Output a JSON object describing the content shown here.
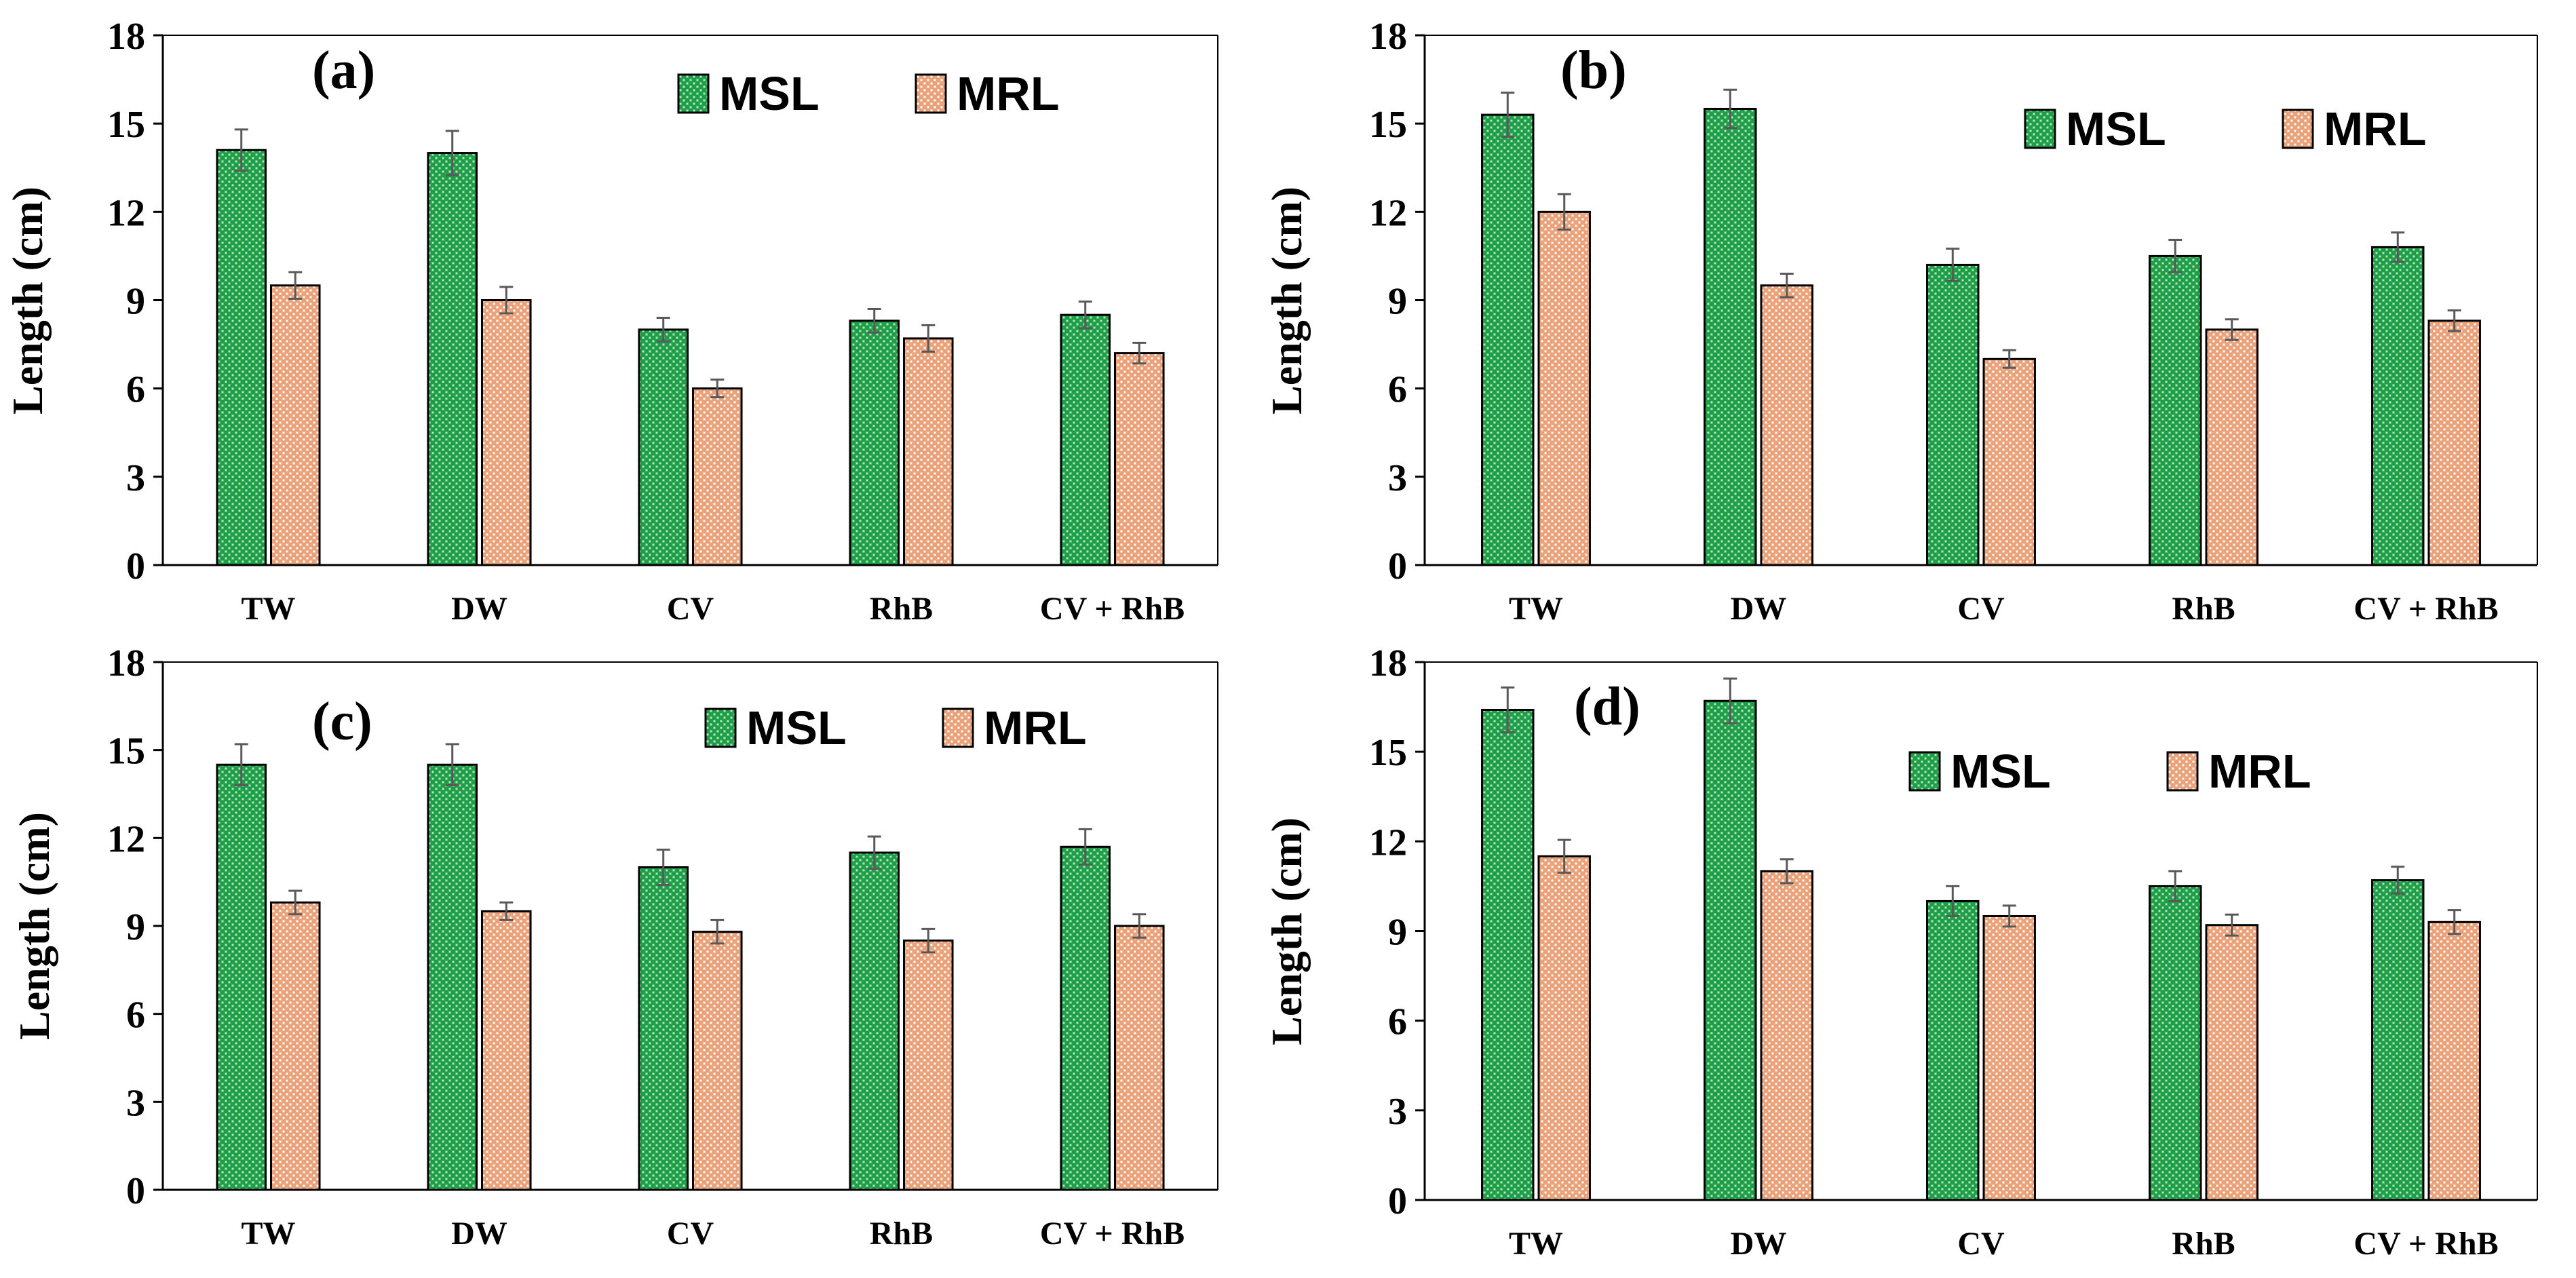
{
  "figure": {
    "colors": {
      "msl_fill": "#1f9e48",
      "msl_dot": "#b8e6c4",
      "mrl_fill": "#e9a27a",
      "mrl_dot": "#ffffff",
      "bar_outline": "#000000",
      "error_bar": "#595959",
      "axis": "#000000"
    }
  },
  "chart_data": [
    {
      "id": "a",
      "type": "bar",
      "panel_label": "(a)",
      "ylabel": "Length (cm)",
      "ylim": [
        0,
        18
      ],
      "yticks": [
        "0",
        "3",
        "6",
        "9",
        "12",
        "15",
        "18"
      ],
      "categories": [
        "TW",
        "DW",
        "CV",
        "RhB",
        "CV + RhB"
      ],
      "legend_position": "top-right",
      "series": [
        {
          "name": "MSL",
          "values": [
            14.1,
            14.0,
            8.0,
            8.3,
            8.5
          ],
          "errors": [
            0.7,
            0.75,
            0.4,
            0.4,
            0.45
          ]
        },
        {
          "name": "MRL",
          "values": [
            9.5,
            9.0,
            6.0,
            7.7,
            7.2
          ],
          "errors": [
            0.45,
            0.45,
            0.3,
            0.45,
            0.35
          ]
        }
      ]
    },
    {
      "id": "b",
      "type": "bar",
      "panel_label": "(b)",
      "ylabel": "Length (cm)",
      "ylim": [
        0,
        18
      ],
      "yticks": [
        "0",
        "3",
        "6",
        "9",
        "12",
        "15",
        "18"
      ],
      "categories": [
        "TW",
        "DW",
        "CV",
        "RhB",
        "CV + RhB"
      ],
      "legend_position": "top-right",
      "series": [
        {
          "name": "MSL",
          "values": [
            15.3,
            15.5,
            10.2,
            10.5,
            10.8
          ],
          "errors": [
            0.75,
            0.65,
            0.55,
            0.55,
            0.5
          ]
        },
        {
          "name": "MRL",
          "values": [
            12.0,
            9.5,
            7.0,
            8.0,
            8.3
          ],
          "errors": [
            0.6,
            0.4,
            0.3,
            0.35,
            0.35
          ]
        }
      ]
    },
    {
      "id": "c",
      "type": "bar",
      "panel_label": "(c)",
      "ylabel": "Length (cm)",
      "ylim": [
        0,
        18
      ],
      "yticks": [
        "0",
        "3",
        "6",
        "9",
        "12",
        "15",
        "18"
      ],
      "categories": [
        "TW",
        "DW",
        "CV",
        "RhB",
        "CV + RhB"
      ],
      "legend_position": "top-right",
      "series": [
        {
          "name": "MSL",
          "values": [
            14.5,
            14.5,
            11.0,
            11.5,
            11.7
          ],
          "errors": [
            0.7,
            0.7,
            0.6,
            0.55,
            0.6
          ]
        },
        {
          "name": "MRL",
          "values": [
            9.8,
            9.5,
            8.8,
            8.5,
            9.0
          ],
          "errors": [
            0.4,
            0.3,
            0.4,
            0.4,
            0.4
          ]
        }
      ]
    },
    {
      "id": "d",
      "type": "bar",
      "panel_label": "(d)",
      "ylabel": "Length (cm)",
      "ylim": [
        0,
        18
      ],
      "yticks": [
        "0",
        "3",
        "6",
        "9",
        "12",
        "15",
        "18"
      ],
      "categories": [
        "TW",
        "DW",
        "CV",
        "RhB",
        "CV + RhB"
      ],
      "legend_position": "top-right",
      "series": [
        {
          "name": "MSL",
          "values": [
            16.4,
            16.7,
            10.0,
            10.5,
            10.7
          ],
          "errors": [
            0.75,
            0.75,
            0.5,
            0.5,
            0.45
          ]
        },
        {
          "name": "MRL",
          "values": [
            11.5,
            11.0,
            9.5,
            9.2,
            9.3
          ],
          "errors": [
            0.55,
            0.4,
            0.35,
            0.35,
            0.4
          ]
        }
      ]
    }
  ]
}
